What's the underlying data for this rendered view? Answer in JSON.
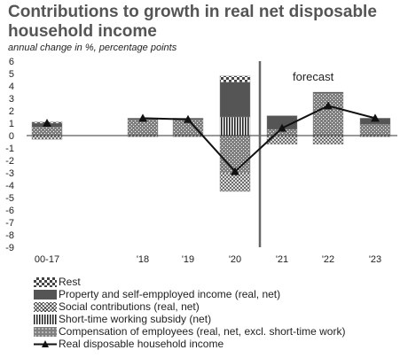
{
  "title": "Contributions to growth in real net disposable household income",
  "subtitle": "annual change in %, percentage points",
  "forecast_label": "forecast",
  "chart_data": {
    "type": "bar",
    "stacked": true,
    "categories": [
      "00-17",
      "'18",
      "'19",
      "'20",
      "'21",
      "'22",
      "'23"
    ],
    "ylim": [
      -9,
      6
    ],
    "yticks": [
      -9,
      -8,
      -7,
      -6,
      -5,
      -4,
      -3,
      -2,
      -1,
      0,
      1,
      2,
      3,
      4,
      5,
      6
    ],
    "forecast_start_after": "'20",
    "series": [
      {
        "name": "Compensation of employees (real, net, excl. short-time work)",
        "kind": "bar",
        "pattern": "stipple",
        "values": [
          0.7,
          1.3,
          1.3,
          -3.0,
          0.5,
          3.4,
          0.9
        ]
      },
      {
        "name": "Short-time working subsidy (net)",
        "kind": "bar",
        "pattern": "vstripes",
        "values": [
          0,
          0,
          0,
          1.5,
          0,
          0,
          0
        ]
      },
      {
        "name": "Social contributions (real, net)",
        "kind": "bar",
        "pattern": "crosshatch",
        "values": [
          -0.3,
          -0.1,
          -0.1,
          -1.5,
          -0.7,
          -0.7,
          -0.1
        ]
      },
      {
        "name": "Property and self-empployed income (real, net)",
        "kind": "bar",
        "pattern": "dark",
        "values": [
          0.3,
          0.1,
          0.1,
          2.8,
          1.1,
          0.1,
          0.5
        ]
      },
      {
        "name": "Rest",
        "kind": "bar",
        "pattern": "checker",
        "values": [
          0.1,
          0,
          0,
          0.5,
          0,
          0,
          0
        ]
      },
      {
        "name": "Real disposable household income",
        "kind": "line",
        "values": [
          1.0,
          1.4,
          1.3,
          -2.9,
          0.6,
          2.4,
          1.4
        ]
      }
    ],
    "legend_order": [
      "Rest",
      "Property and self-empployed income (real, net)",
      "Social contributions (real, net)",
      "Short-time working subsidy (net)",
      "Compensation of employees (real, net, excl. short-time work)",
      "Real disposable household income"
    ]
  }
}
